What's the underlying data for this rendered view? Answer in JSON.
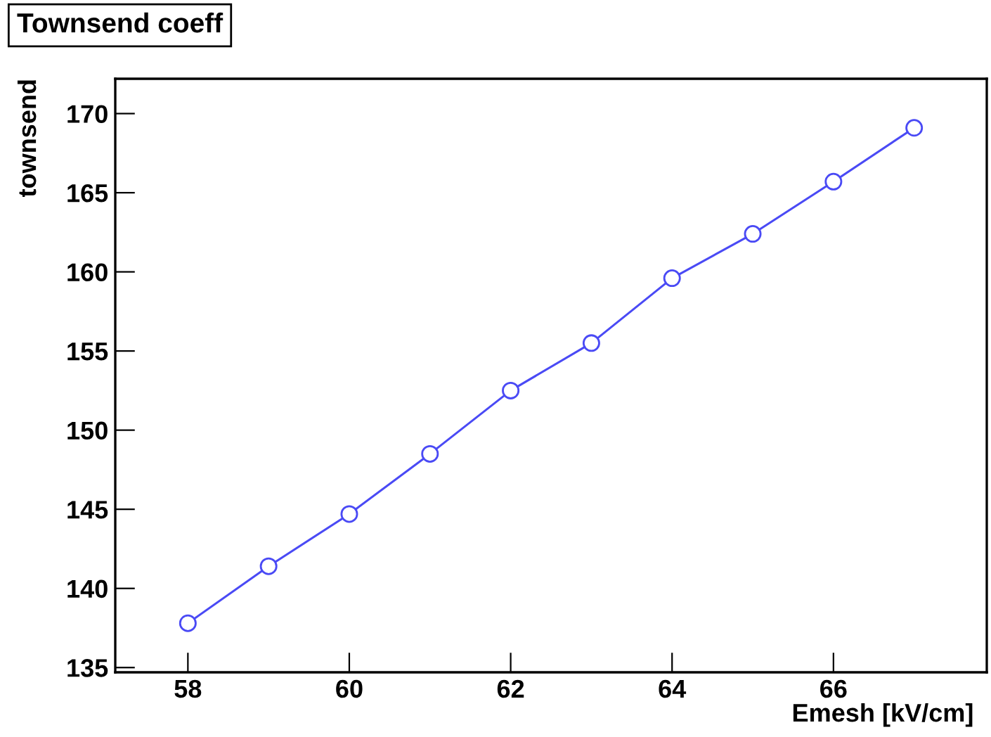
{
  "chart_data": {
    "type": "line",
    "title": "Townsend coeff",
    "xlabel": "Emesh [kV/cm]",
    "ylabel": "townsend",
    "x": [
      58,
      59,
      60,
      61,
      62,
      63,
      64,
      65,
      66,
      67
    ],
    "series": [
      {
        "color": "#4a4af5",
        "values": [
          137.8,
          141.4,
          144.7,
          148.5,
          152.5,
          155.5,
          159.6,
          162.4,
          165.7,
          169.1
        ]
      }
    ],
    "xlim": [
      57.1,
      67.9
    ],
    "xticks": [
      58,
      60,
      62,
      64,
      66
    ],
    "ylim": [
      134.7,
      172.2
    ],
    "yticks": [
      135,
      140,
      145,
      150,
      155,
      160,
      165,
      170
    ],
    "marker": "circle",
    "line_style": "solid",
    "grid": false,
    "legend": false
  }
}
